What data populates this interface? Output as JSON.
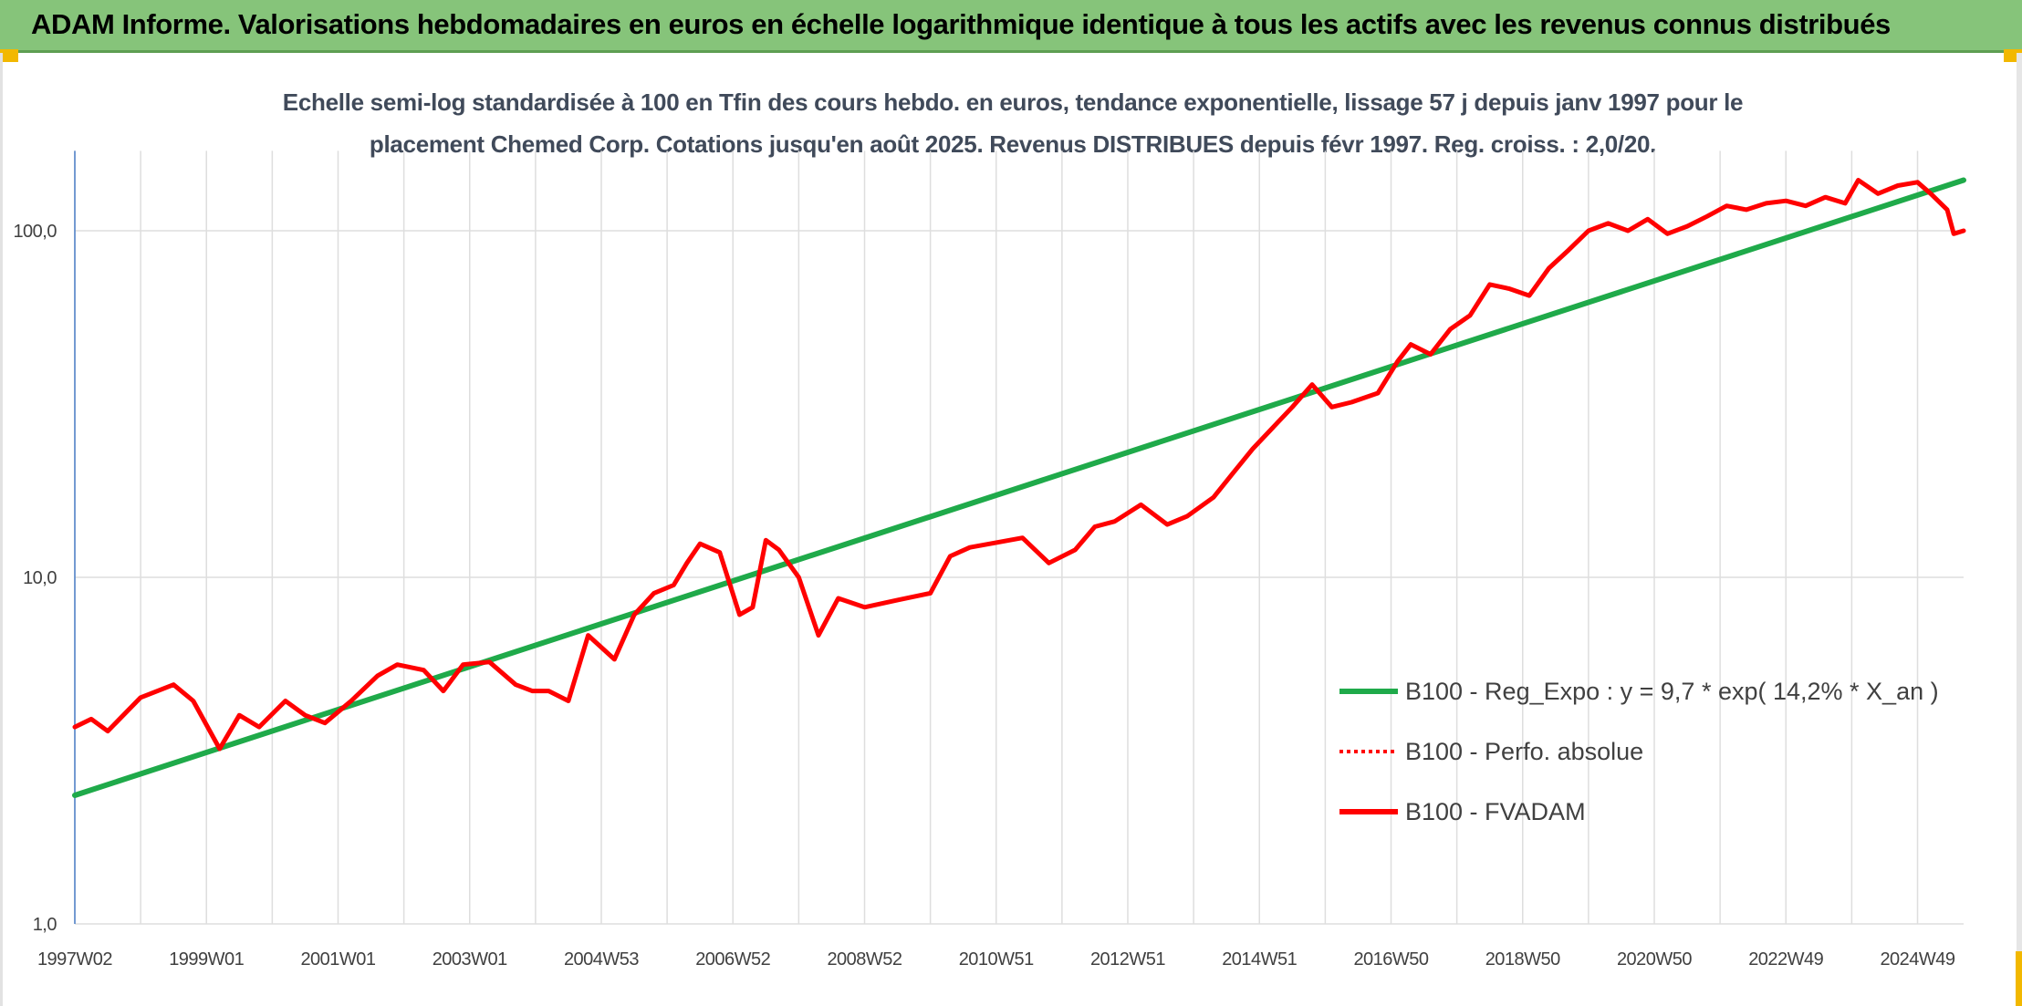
{
  "banner": {
    "title": "ADAM Informe. Valorisations hebdomadaires en euros en échelle logarithmique identique à tous les actifs avec les revenus connus distribués",
    "accent_color": "#86c47a"
  },
  "chart_data": {
    "type": "line",
    "title_lines": [
      "Echelle semi-log standardisée à 100 en Tfin des cours hebdo. en euros, tendance exponentielle, lissage 57 j depuis janv 1997 pour le",
      "placement Chemed Corp. Cotations jusqu'en août 2025. Revenus DISTRIBUES depuis févr 1997. Reg. croiss. : 2,0/20."
    ],
    "y_scale": "log",
    "ylim": [
      1,
      170
    ],
    "y_ticks": [
      {
        "value": 1,
        "label": "1,0"
      },
      {
        "value": 10,
        "label": "10,0"
      },
      {
        "value": 100,
        "label": "100,0"
      }
    ],
    "xlim": [
      1997.0,
      2025.7
    ],
    "x_ticks": [
      {
        "value": 1997.0,
        "label": "1997W02"
      },
      {
        "value": 1999.0,
        "label": "1999W01"
      },
      {
        "value": 2001.0,
        "label": "2001W01"
      },
      {
        "value": 2003.0,
        "label": "2003W01"
      },
      {
        "value": 2005.0,
        "label": "2004W53"
      },
      {
        "value": 2007.0,
        "label": "2006W52"
      },
      {
        "value": 2009.0,
        "label": "2008W52"
      },
      {
        "value": 2011.0,
        "label": "2010W51"
      },
      {
        "value": 2013.0,
        "label": "2012W51"
      },
      {
        "value": 2015.0,
        "label": "2014W51"
      },
      {
        "value": 2017.0,
        "label": "2016W50"
      },
      {
        "value": 2019.0,
        "label": "2018W50"
      },
      {
        "value": 2021.0,
        "label": "2020W50"
      },
      {
        "value": 2023.0,
        "label": "2022W49"
      },
      {
        "value": 2025.0,
        "label": "2024W49"
      }
    ],
    "grid": true,
    "legend_position": "bottom-right",
    "series": [
      {
        "name": "B100 - Reg_Expo : y = 9,7 * exp( 14,2% *  X_an )",
        "color": "#1faa4a",
        "style": "solid",
        "x": [
          1997.0,
          2025.7
        ],
        "y": [
          2.35,
          140
        ]
      },
      {
        "name": "B100 - Perfo. absolue",
        "color": "#ff0000",
        "style": "dotted",
        "x": [],
        "y": []
      },
      {
        "name": "B100 - FVADAM",
        "color": "#ff0000",
        "style": "solid",
        "x": [
          1997.0,
          1997.25,
          1997.5,
          1998.0,
          1998.5,
          1998.8,
          1999.2,
          1999.5,
          1999.8,
          2000.2,
          2000.5,
          2000.8,
          2001.2,
          2001.6,
          2001.9,
          2002.3,
          2002.6,
          2002.9,
          2003.3,
          2003.7,
          2003.95,
          2004.2,
          2004.5,
          2004.8,
          2005.2,
          2005.5,
          2005.8,
          2006.1,
          2006.3,
          2006.5,
          2006.8,
          2007.1,
          2007.3,
          2007.5,
          2007.7,
          2008.0,
          2008.3,
          2008.6,
          2009.0,
          2009.5,
          2010.0,
          2010.3,
          2010.6,
          2011.0,
          2011.4,
          2011.8,
          2012.2,
          2012.5,
          2012.8,
          2013.2,
          2013.6,
          2013.9,
          2014.3,
          2014.6,
          2014.9,
          2015.2,
          2015.5,
          2015.8,
          2016.1,
          2016.4,
          2016.8,
          2017.1,
          2017.3,
          2017.6,
          2017.9,
          2018.2,
          2018.5,
          2018.8,
          2019.1,
          2019.4,
          2019.7,
          2020.0,
          2020.3,
          2020.6,
          2020.9,
          2021.2,
          2021.5,
          2021.8,
          2022.1,
          2022.4,
          2022.7,
          2023.0,
          2023.3,
          2023.6,
          2023.9,
          2024.1,
          2024.4,
          2024.7,
          2025.0,
          2025.2,
          2025.45,
          2025.55,
          2025.7
        ],
        "y": [
          3.7,
          3.9,
          3.6,
          4.5,
          4.9,
          4.4,
          3.2,
          4.0,
          3.7,
          4.4,
          4.0,
          3.8,
          4.4,
          5.2,
          5.6,
          5.4,
          4.7,
          5.6,
          5.7,
          4.9,
          4.7,
          4.7,
          4.4,
          6.8,
          5.8,
          7.8,
          9.0,
          9.5,
          11.0,
          12.5,
          11.8,
          7.8,
          8.2,
          12.8,
          12.0,
          10.0,
          6.8,
          8.7,
          8.2,
          8.6,
          9.0,
          11.5,
          12.2,
          12.6,
          13.0,
          11.0,
          12.0,
          14.0,
          14.5,
          16.2,
          14.2,
          15.0,
          17.0,
          20.0,
          23.5,
          27.0,
          31.0,
          36.0,
          31.0,
          32.0,
          34.0,
          42.0,
          47.0,
          44.0,
          52.0,
          57.0,
          70.0,
          68.0,
          65.0,
          78.0,
          88.0,
          100.0,
          105.0,
          100.0,
          108.0,
          98.0,
          103.0,
          110.0,
          118.0,
          115.0,
          120.0,
          122.0,
          118.0,
          125.0,
          120.0,
          140.0,
          128.0,
          135.0,
          138.0,
          128.0,
          115.0,
          98.0,
          100.0
        ]
      }
    ]
  }
}
